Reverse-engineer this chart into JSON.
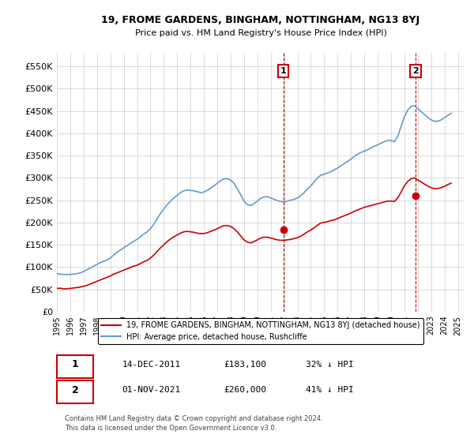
{
  "title": "19, FROME GARDENS, BINGHAM, NOTTINGHAM, NG13 8YJ",
  "subtitle": "Price paid vs. HM Land Registry's House Price Index (HPI)",
  "ylabel_ticks": [
    "£0",
    "£50K",
    "£100K",
    "£150K",
    "£200K",
    "£250K",
    "£300K",
    "£350K",
    "£400K",
    "£450K",
    "£500K",
    "£550K"
  ],
  "ytick_values": [
    0,
    50000,
    100000,
    150000,
    200000,
    250000,
    300000,
    350000,
    400000,
    450000,
    500000,
    550000
  ],
  "ylim": [
    0,
    580000
  ],
  "xlim_start": 1995.0,
  "xlim_end": 2025.5,
  "hpi_color": "#6699cc",
  "price_color": "#cc0000",
  "point1_x": 2011.95,
  "point1_y": 183100,
  "point2_x": 2021.83,
  "point2_y": 260000,
  "annotation1_label": "1",
  "annotation2_label": "2",
  "legend_line1": "19, FROME GARDENS, BINGHAM, NOTTINGHAM, NG13 8YJ (detached house)",
  "legend_line2": "HPI: Average price, detached house, Rushcliffe",
  "table_row1": [
    "1",
    "14-DEC-2011",
    "£183,100",
    "32% ↓ HPI"
  ],
  "table_row2": [
    "2",
    "01-NOV-2021",
    "£260,000",
    "41% ↓ HPI"
  ],
  "footer": "Contains HM Land Registry data © Crown copyright and database right 2024.\nThis data is licensed under the Open Government Licence v3.0.",
  "background_color": "#ffffff",
  "grid_color": "#cccccc",
  "hpi_data_x": [
    1995.0,
    1995.25,
    1995.5,
    1995.75,
    1996.0,
    1996.25,
    1996.5,
    1996.75,
    1997.0,
    1997.25,
    1997.5,
    1997.75,
    1998.0,
    1998.25,
    1998.5,
    1998.75,
    1999.0,
    1999.25,
    1999.5,
    1999.75,
    2000.0,
    2000.25,
    2000.5,
    2000.75,
    2001.0,
    2001.25,
    2001.5,
    2001.75,
    2002.0,
    2002.25,
    2002.5,
    2002.75,
    2003.0,
    2003.25,
    2003.5,
    2003.75,
    2004.0,
    2004.25,
    2004.5,
    2004.75,
    2005.0,
    2005.25,
    2005.5,
    2005.75,
    2006.0,
    2006.25,
    2006.5,
    2006.75,
    2007.0,
    2007.25,
    2007.5,
    2007.75,
    2008.0,
    2008.25,
    2008.5,
    2008.75,
    2009.0,
    2009.25,
    2009.5,
    2009.75,
    2010.0,
    2010.25,
    2010.5,
    2010.75,
    2011.0,
    2011.25,
    2011.5,
    2011.75,
    2012.0,
    2012.25,
    2012.5,
    2012.75,
    2013.0,
    2013.25,
    2013.5,
    2013.75,
    2014.0,
    2014.25,
    2014.5,
    2014.75,
    2015.0,
    2015.25,
    2015.5,
    2015.75,
    2016.0,
    2016.25,
    2016.5,
    2016.75,
    2017.0,
    2017.25,
    2017.5,
    2017.75,
    2018.0,
    2018.25,
    2018.5,
    2018.75,
    2019.0,
    2019.25,
    2019.5,
    2019.75,
    2020.0,
    2020.25,
    2020.5,
    2020.75,
    2021.0,
    2021.25,
    2021.5,
    2021.75,
    2022.0,
    2022.25,
    2022.5,
    2022.75,
    2023.0,
    2023.25,
    2023.5,
    2023.75,
    2024.0,
    2024.25,
    2024.5
  ],
  "hpi_data_y": [
    85000,
    84000,
    83500,
    83000,
    83500,
    84000,
    85000,
    87000,
    90000,
    94000,
    98000,
    102000,
    106000,
    110000,
    113000,
    116000,
    120000,
    127000,
    133000,
    138000,
    143000,
    148000,
    153000,
    158000,
    162000,
    168000,
    174000,
    179000,
    186000,
    196000,
    208000,
    220000,
    230000,
    240000,
    248000,
    255000,
    261000,
    267000,
    271000,
    273000,
    272000,
    271000,
    269000,
    267000,
    268000,
    272000,
    277000,
    282000,
    288000,
    294000,
    298000,
    298000,
    295000,
    288000,
    276000,
    262000,
    248000,
    240000,
    238000,
    242000,
    248000,
    254000,
    257000,
    258000,
    255000,
    252000,
    249000,
    247000,
    246000,
    248000,
    250000,
    252000,
    255000,
    260000,
    267000,
    275000,
    282000,
    291000,
    300000,
    306000,
    308000,
    311000,
    314000,
    318000,
    322000,
    327000,
    332000,
    337000,
    342000,
    348000,
    353000,
    357000,
    360000,
    363000,
    367000,
    371000,
    374000,
    378000,
    381000,
    384000,
    384000,
    381000,
    393000,
    415000,
    437000,
    452000,
    460000,
    462000,
    455000,
    449000,
    442000,
    436000,
    430000,
    427000,
    427000,
    430000,
    435000,
    440000,
    445000
  ],
  "price_data_x": [
    1995.0,
    1995.25,
    1995.5,
    1995.75,
    1996.0,
    1996.25,
    1996.5,
    1996.75,
    1997.0,
    1997.25,
    1997.5,
    1997.75,
    1998.0,
    1998.25,
    1998.5,
    1998.75,
    1999.0,
    1999.25,
    1999.5,
    1999.75,
    2000.0,
    2000.25,
    2000.5,
    2000.75,
    2001.0,
    2001.25,
    2001.5,
    2001.75,
    2002.0,
    2002.25,
    2002.5,
    2002.75,
    2003.0,
    2003.25,
    2003.5,
    2003.75,
    2004.0,
    2004.25,
    2004.5,
    2004.75,
    2005.0,
    2005.25,
    2005.5,
    2005.75,
    2006.0,
    2006.25,
    2006.5,
    2006.75,
    2007.0,
    2007.25,
    2007.5,
    2007.75,
    2008.0,
    2008.25,
    2008.5,
    2008.75,
    2009.0,
    2009.25,
    2009.5,
    2009.75,
    2010.0,
    2010.25,
    2010.5,
    2010.75,
    2011.0,
    2011.25,
    2011.5,
    2011.75,
    2012.0,
    2012.25,
    2012.5,
    2012.75,
    2013.0,
    2013.25,
    2013.5,
    2013.75,
    2014.0,
    2014.25,
    2014.5,
    2014.75,
    2015.0,
    2015.25,
    2015.5,
    2015.75,
    2016.0,
    2016.25,
    2016.5,
    2016.75,
    2017.0,
    2017.25,
    2017.5,
    2017.75,
    2018.0,
    2018.25,
    2018.5,
    2018.75,
    2019.0,
    2019.25,
    2019.5,
    2019.75,
    2020.0,
    2020.25,
    2020.5,
    2020.75,
    2021.0,
    2021.25,
    2021.5,
    2021.75,
    2022.0,
    2022.25,
    2022.5,
    2022.75,
    2023.0,
    2023.25,
    2023.5,
    2023.75,
    2024.0,
    2024.25,
    2024.5
  ],
  "price_data_y": [
    52000,
    52500,
    51000,
    51500,
    52000,
    53000,
    54000,
    55000,
    57000,
    59000,
    62000,
    65000,
    68000,
    71000,
    74000,
    77000,
    80000,
    84000,
    87000,
    90000,
    93000,
    96000,
    99000,
    102000,
    104000,
    108000,
    112000,
    115000,
    120000,
    127000,
    135000,
    143000,
    150000,
    157000,
    163000,
    168000,
    172000,
    176000,
    179000,
    180000,
    179000,
    178000,
    176000,
    175000,
    175000,
    177000,
    180000,
    183000,
    186000,
    190000,
    193000,
    193000,
    191000,
    186000,
    179000,
    170000,
    161000,
    156000,
    154000,
    157000,
    161000,
    165000,
    167000,
    167000,
    165000,
    163000,
    161000,
    160000,
    160000,
    161000,
    162000,
    164000,
    166000,
    169000,
    174000,
    179000,
    183000,
    188000,
    194000,
    199000,
    200000,
    202000,
    204000,
    206000,
    209000,
    212000,
    215000,
    218000,
    221000,
    225000,
    228000,
    231000,
    234000,
    236000,
    238000,
    240000,
    242000,
    244000,
    246000,
    248000,
    248000,
    247000,
    255000,
    268000,
    282000,
    292000,
    298000,
    300000,
    295000,
    291000,
    286000,
    282000,
    278000,
    276000,
    276000,
    278000,
    281000,
    285000,
    288000
  ]
}
